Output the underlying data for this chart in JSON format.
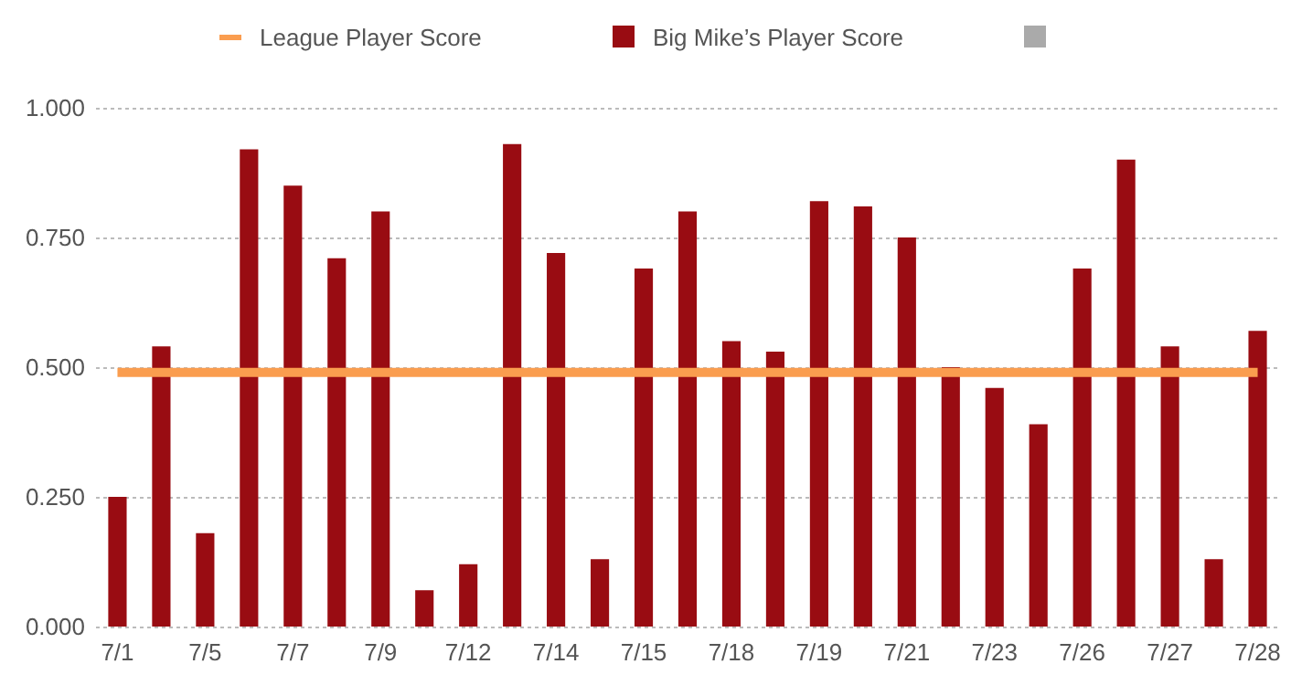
{
  "chart_data": {
    "type": "bar",
    "legend": "top",
    "grid": "y",
    "categories": [
      "7/1",
      null,
      "7/5",
      null,
      "7/7",
      null,
      "7/9",
      null,
      "7/12",
      null,
      "7/14",
      null,
      "7/15",
      null,
      "7/18",
      null,
      "7/19",
      null,
      "7/21",
      null,
      "7/23",
      null,
      "7/26",
      null,
      "7/27",
      null,
      "7/28"
    ],
    "ylim": [
      0,
      1
    ],
    "yticks": [
      {
        "value": 0,
        "label": "0.000"
      },
      {
        "value": 0.25,
        "label": "0.250"
      },
      {
        "value": 0.5,
        "label": "0.500"
      },
      {
        "value": 0.75,
        "label": "0.750"
      },
      {
        "value": 1,
        "label": "1.000"
      }
    ],
    "series": [
      {
        "name": "League Player Score",
        "type": "line",
        "color": "#fa9d4f",
        "values": [
          0.49,
          0.49,
          0.49,
          0.49,
          0.49,
          0.49,
          0.49,
          0.49,
          0.49,
          0.49,
          0.49,
          0.49,
          0.49,
          0.49,
          0.49,
          0.49,
          0.49,
          0.49,
          0.49,
          0.49,
          0.49,
          0.49,
          0.49,
          0.49,
          0.49,
          0.49,
          0.49
        ]
      },
      {
        "name": "Big Mike’s Player Score",
        "color": "#990c12",
        "values": [
          0.25,
          0.54,
          0.18,
          0.92,
          0.85,
          0.71,
          0.8,
          0.07,
          0.12,
          0.93,
          0.72,
          0.13,
          0.69,
          0.8,
          0.55,
          0.53,
          0.82,
          0.81,
          0.75,
          0.5,
          0.46,
          0.39,
          0.69,
          0.9,
          0.54,
          0.13,
          0.57
        ]
      }
    ]
  }
}
